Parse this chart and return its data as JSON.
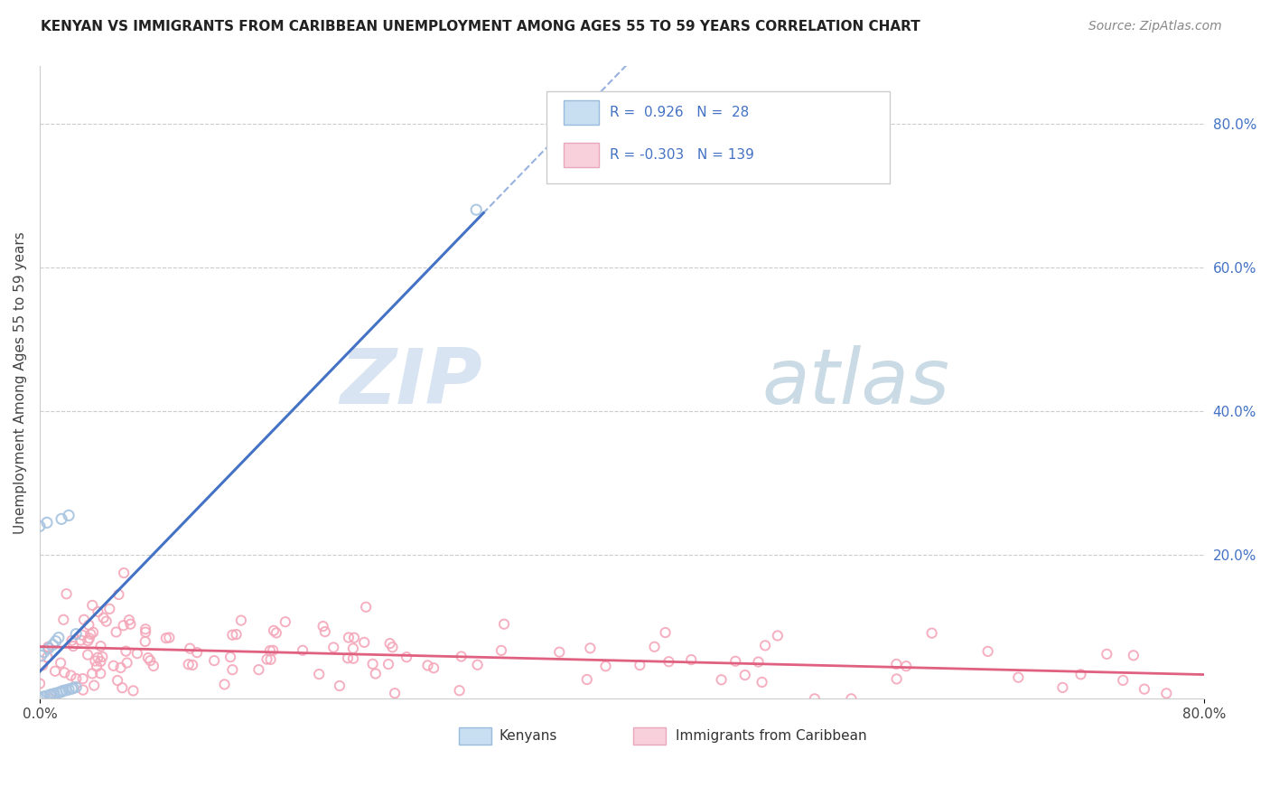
{
  "title": "KENYAN VS IMMIGRANTS FROM CARIBBEAN UNEMPLOYMENT AMONG AGES 55 TO 59 YEARS CORRELATION CHART",
  "source": "Source: ZipAtlas.com",
  "ylabel": "Unemployment Among Ages 55 to 59 years",
  "kenyan_color": "#a8c4e0",
  "caribbean_color": "#f4a7b9",
  "kenyan_line_color": "#4472C4",
  "caribbean_line_color": "#E06080",
  "background_color": "#ffffff",
  "grid_color": "#cccccc",
  "legend_text1": "R =  0.926   N =  28",
  "legend_text2": "R = -0.303   N = 139",
  "watermark_zip": "ZIP",
  "watermark_atlas": "atlas",
  "xlim": [
    0,
    0.8
  ],
  "ylim": [
    0,
    0.88
  ],
  "right_yticks": [
    0.2,
    0.4,
    0.6,
    0.8
  ],
  "right_yticklabels": [
    "20.0%",
    "40.0%",
    "60.0%",
    "80.0%"
  ],
  "xtick_labels": [
    "0.0%",
    "80.0%"
  ],
  "xtick_positions": [
    0.0,
    0.8
  ]
}
